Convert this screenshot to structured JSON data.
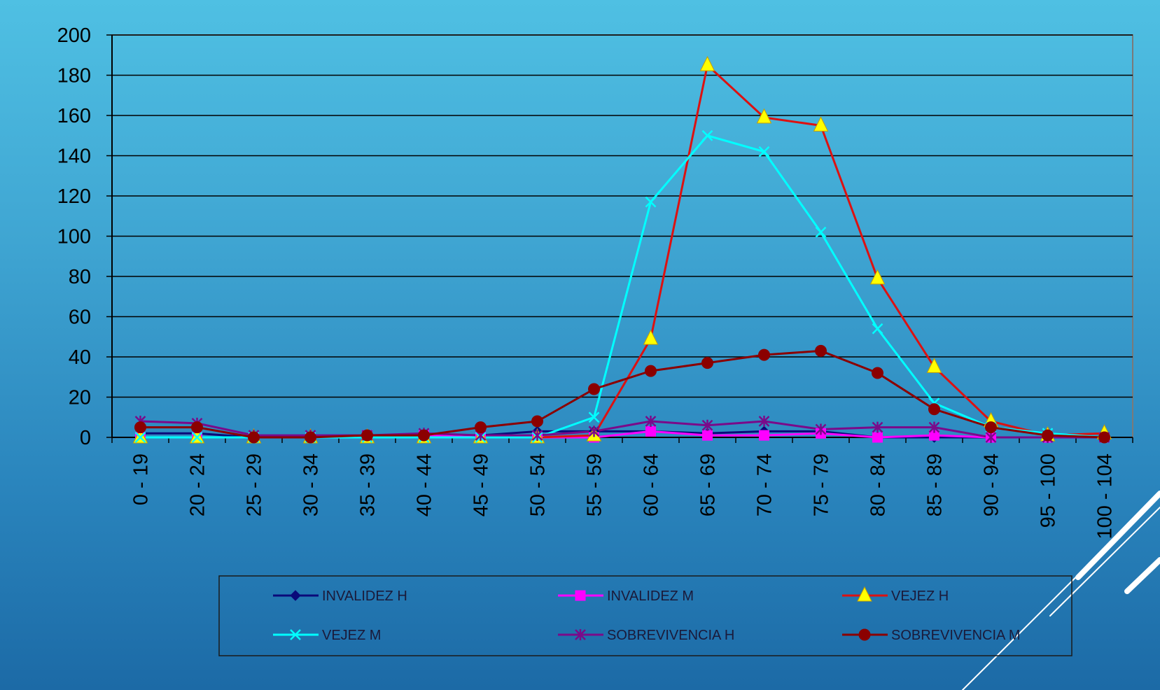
{
  "chart_data": {
    "type": "line",
    "categories": [
      "0 - 19",
      "20 - 24",
      "25 - 29",
      "30 - 34",
      "35 - 39",
      "40 - 44",
      "45 - 49",
      "50 - 54",
      "55 - 59",
      "60 - 64",
      "65 - 69",
      "70 - 74",
      "75 - 79",
      "80 - 84",
      "85 - 89",
      "90 - 94",
      "95 - 100",
      "100 - 104"
    ],
    "ylim": [
      0,
      200
    ],
    "yticks": [
      0,
      20,
      40,
      60,
      80,
      100,
      120,
      140,
      160,
      180,
      200
    ],
    "grid": true,
    "legend_position": "bottom",
    "series": [
      {
        "name": "INVALIDEZ H",
        "color": "#0a0a7a",
        "marker": "diamond",
        "values": [
          2,
          2,
          0,
          0,
          0,
          0,
          1,
          3,
          3,
          3,
          2,
          3,
          3,
          0,
          0,
          0,
          0,
          0
        ]
      },
      {
        "name": "INVALIDEZ M",
        "color": "#ff00ff",
        "marker": "square",
        "values": [
          0,
          0,
          0,
          0,
          1,
          1,
          0,
          0,
          0,
          3,
          1,
          1,
          2,
          0,
          1,
          0,
          0,
          0
        ]
      },
      {
        "name": "VEJEZ H",
        "color": "#dd1111",
        "marker": "triangle",
        "marker_color": "#ffff00",
        "values": [
          0,
          0,
          0,
          0,
          0,
          0,
          0,
          0,
          1,
          49,
          185,
          159,
          155,
          79,
          35,
          8,
          1,
          2
        ]
      },
      {
        "name": "VEJEZ M",
        "color": "#00ffff",
        "marker": "x",
        "values": [
          0,
          0,
          0,
          0,
          0,
          0,
          0,
          0,
          10,
          117,
          150,
          142,
          102,
          54,
          17,
          5,
          2,
          0
        ]
      },
      {
        "name": "SOBREVIVENCIA H",
        "color": "#7a0a8a",
        "marker": "star",
        "values": [
          8,
          7,
          1,
          1,
          1,
          2,
          1,
          1,
          3,
          8,
          6,
          8,
          4,
          5,
          5,
          0,
          0,
          0
        ]
      },
      {
        "name": "SOBREVIVENCIA M",
        "color": "#8b0000",
        "marker": "circle",
        "values": [
          5,
          5,
          0,
          0,
          1,
          1,
          5,
          8,
          24,
          33,
          37,
          41,
          43,
          32,
          14,
          5,
          1,
          0
        ]
      }
    ]
  }
}
